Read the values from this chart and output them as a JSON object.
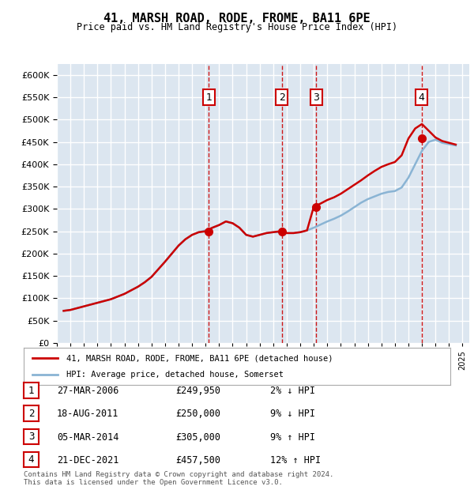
{
  "title": "41, MARSH ROAD, RODE, FROME, BA11 6PE",
  "subtitle": "Price paid vs. HM Land Registry's House Price Index (HPI)",
  "background_color": "#dce6f0",
  "plot_bg_color": "#dce6f0",
  "ylabel": "",
  "ylim": [
    0,
    625000
  ],
  "yticks": [
    0,
    50000,
    100000,
    150000,
    200000,
    250000,
    300000,
    350000,
    400000,
    450000,
    500000,
    550000,
    600000
  ],
  "xlim_start": 1995.0,
  "xlim_end": 2025.5,
  "hpi_color": "#8ab4d4",
  "price_color": "#cc0000",
  "sale_marker_color": "#cc0000",
  "vline_color": "#cc0000",
  "grid_color": "#ffffff",
  "purchases": [
    {
      "num": 1,
      "date": "27-MAR-2006",
      "price": 249950,
      "year": 2006.23,
      "rel": "2% ↓ HPI"
    },
    {
      "num": 2,
      "date": "18-AUG-2011",
      "price": 250000,
      "year": 2011.63,
      "rel": "9% ↓ HPI"
    },
    {
      "num": 3,
      "date": "05-MAR-2014",
      "price": 305000,
      "year": 2014.18,
      "rel": "9% ↑ HPI"
    },
    {
      "num": 4,
      "date": "21-DEC-2021",
      "price": 457500,
      "year": 2021.97,
      "rel": "12% ↑ HPI"
    }
  ],
  "legend_label_price": "41, MARSH ROAD, RODE, FROME, BA11 6PE (detached house)",
  "legend_label_hpi": "HPI: Average price, detached house, Somerset",
  "footer": "Contains HM Land Registry data © Crown copyright and database right 2024.\nThis data is licensed under the Open Government Licence v3.0.",
  "hpi_data": {
    "years": [
      1995.5,
      1996.0,
      1996.5,
      1997.0,
      1997.5,
      1998.0,
      1998.5,
      1999.0,
      1999.5,
      2000.0,
      2000.5,
      2001.0,
      2001.5,
      2002.0,
      2002.5,
      2003.0,
      2003.5,
      2004.0,
      2004.5,
      2005.0,
      2005.5,
      2006.0,
      2006.5,
      2007.0,
      2007.5,
      2008.0,
      2008.5,
      2009.0,
      2009.5,
      2010.0,
      2010.5,
      2011.0,
      2011.5,
      2012.0,
      2012.5,
      2013.0,
      2013.5,
      2014.0,
      2014.5,
      2015.0,
      2015.5,
      2016.0,
      2016.5,
      2017.0,
      2017.5,
      2018.0,
      2018.5,
      2019.0,
      2019.5,
      2020.0,
      2020.5,
      2021.0,
      2021.5,
      2022.0,
      2022.5,
      2023.0,
      2023.5,
      2024.0,
      2024.5
    ],
    "values": [
      72000,
      74000,
      78000,
      82000,
      86000,
      90000,
      94000,
      98000,
      104000,
      110000,
      118000,
      126000,
      136000,
      148000,
      165000,
      182000,
      200000,
      218000,
      232000,
      242000,
      248000,
      252000,
      258000,
      264000,
      272000,
      268000,
      258000,
      242000,
      238000,
      242000,
      246000,
      248000,
      248000,
      246000,
      246000,
      248000,
      252000,
      258000,
      265000,
      272000,
      278000,
      285000,
      294000,
      304000,
      314000,
      322000,
      328000,
      334000,
      338000,
      340000,
      348000,
      370000,
      400000,
      430000,
      450000,
      455000,
      448000,
      445000,
      442000
    ]
  },
  "price_data": {
    "years": [
      1995.5,
      1996.0,
      1996.5,
      1997.0,
      1997.5,
      1998.0,
      1998.5,
      1999.0,
      1999.5,
      2000.0,
      2000.5,
      2001.0,
      2001.5,
      2002.0,
      2002.5,
      2003.0,
      2003.5,
      2004.0,
      2004.5,
      2005.0,
      2005.5,
      2006.0,
      2006.5,
      2007.0,
      2007.5,
      2008.0,
      2008.5,
      2009.0,
      2009.5,
      2010.0,
      2010.5,
      2011.0,
      2011.5,
      2012.0,
      2012.5,
      2013.0,
      2013.5,
      2014.0,
      2014.5,
      2015.0,
      2015.5,
      2016.0,
      2016.5,
      2017.0,
      2017.5,
      2018.0,
      2018.5,
      2019.0,
      2019.5,
      2020.0,
      2020.5,
      2021.0,
      2021.5,
      2022.0,
      2022.5,
      2023.0,
      2023.5,
      2024.0,
      2024.5
    ],
    "values": [
      72000,
      74000,
      78000,
      82000,
      86000,
      90000,
      94000,
      98000,
      104000,
      110000,
      118000,
      126000,
      136000,
      148000,
      165000,
      182000,
      200000,
      218000,
      232000,
      242000,
      248000,
      249950,
      258000,
      264000,
      272000,
      268000,
      258000,
      242000,
      238000,
      242000,
      246000,
      248000,
      250000,
      246000,
      246000,
      248000,
      252000,
      305000,
      312000,
      320000,
      326000,
      334000,
      344000,
      354000,
      364000,
      375000,
      385000,
      394000,
      400000,
      405000,
      420000,
      457500,
      480000,
      490000,
      475000,
      460000,
      452000,
      448000,
      444000
    ]
  }
}
